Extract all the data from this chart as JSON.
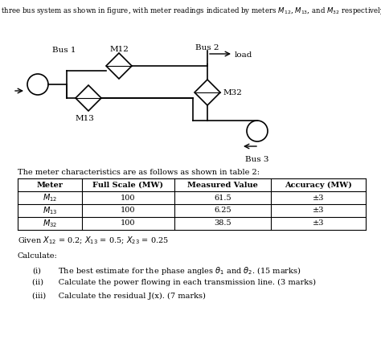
{
  "title": "A three bus system as shown in figure, with meter readings indicated by meters $M_{12}$, $M_{13}$, and $M_{32}$ respectively.",
  "bus1_label": "Bus 1",
  "bus2_label": "Bus 2",
  "bus3_label": "Bus 3",
  "M12_label": "M12",
  "M13_label": "M13",
  "M32_label": "M32",
  "load_label": "load",
  "table_title": "The meter characteristics are as follows as shown in table 2:",
  "table_headers": [
    "Meter",
    "Full Scale (MW)",
    "Measured Value",
    "Accuracy (MW)"
  ],
  "table_rows": [
    [
      "$M_{12}$",
      "100",
      "61.5",
      "±3"
    ],
    [
      "$M_{13}$",
      "100",
      "6.25",
      "±3"
    ],
    [
      "$M_{32}$",
      "100",
      "38.5",
      "±3"
    ]
  ],
  "given_text": "Given $X_{12}$ = 0.2; $X_{13}$ = 0.5; $X_{23}$ = 0.25",
  "calculate_label": "Calculate:",
  "item_i": "(i)       The best estimate for the phase angles $\\theta_1$ and $\\theta_2$. (15 marks)",
  "item_ii": "(ii)      Calculate the power flowing in each transmission line. (3 marks)",
  "item_iii": "(iii)     Calculate the residual J(x). (7 marks)",
  "bg_color": "#ffffff",
  "lc": "#000000",
  "tc": "#000000"
}
